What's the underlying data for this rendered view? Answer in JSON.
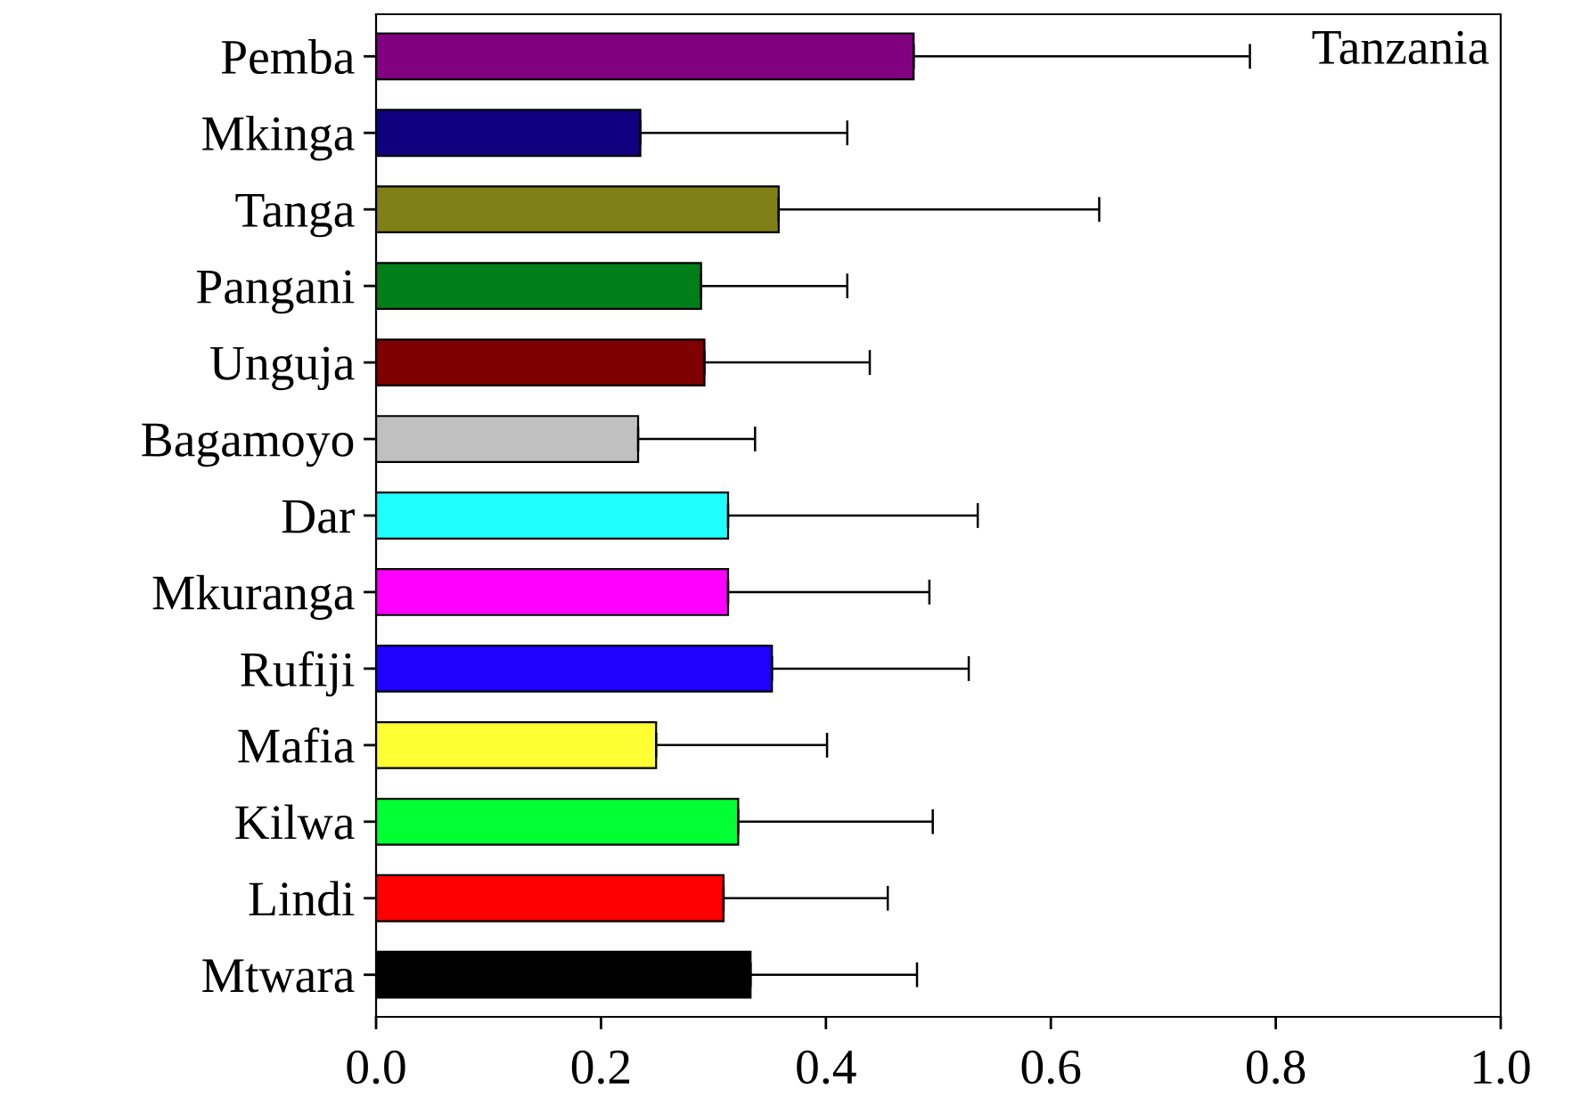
{
  "chart_data": {
    "type": "bar",
    "orientation": "horizontal",
    "categories": [
      "Pemba",
      "Mkinga",
      "Tanga",
      "Pangani",
      "Unguja",
      "Bagamoyo",
      "Dar",
      "Mkuranga",
      "Rufiji",
      "Mafia",
      "Kilwa",
      "Lindi",
      "Mtwara"
    ],
    "values": [
      0.478,
      0.235,
      0.358,
      0.289,
      0.292,
      0.233,
      0.313,
      0.313,
      0.352,
      0.249,
      0.322,
      0.309,
      0.333
    ],
    "errors": [
      [
        0.478,
        0.777
      ],
      [
        0.235,
        0.419
      ],
      [
        0.358,
        0.643
      ],
      [
        0.289,
        0.419
      ],
      [
        0.292,
        0.439
      ],
      [
        0.233,
        0.337
      ],
      [
        0.313,
        0.535
      ],
      [
        0.313,
        0.492
      ],
      [
        0.352,
        0.527
      ],
      [
        0.249,
        0.401
      ],
      [
        0.322,
        0.495
      ],
      [
        0.309,
        0.455
      ],
      [
        0.333,
        0.481
      ]
    ],
    "colors": [
      "#800080",
      "#10007f",
      "#808019",
      "#007f19",
      "#7f0000",
      "#c0c0c0",
      "#20ffff",
      "#ff00ff",
      "#2000ff",
      "#ffff33",
      "#00ff33",
      "#ff0000",
      "#000000"
    ],
    "xlim": [
      0,
      1.0
    ],
    "xticks": [
      {
        "value": 0,
        "label": "0.0"
      },
      0.2,
      0.4,
      0.6,
      0.8,
      {
        "value": 1.0,
        "label": "1.0"
      }
    ],
    "annotations": [
      "Tanzania"
    ],
    "grid": false,
    "legend": false
  }
}
